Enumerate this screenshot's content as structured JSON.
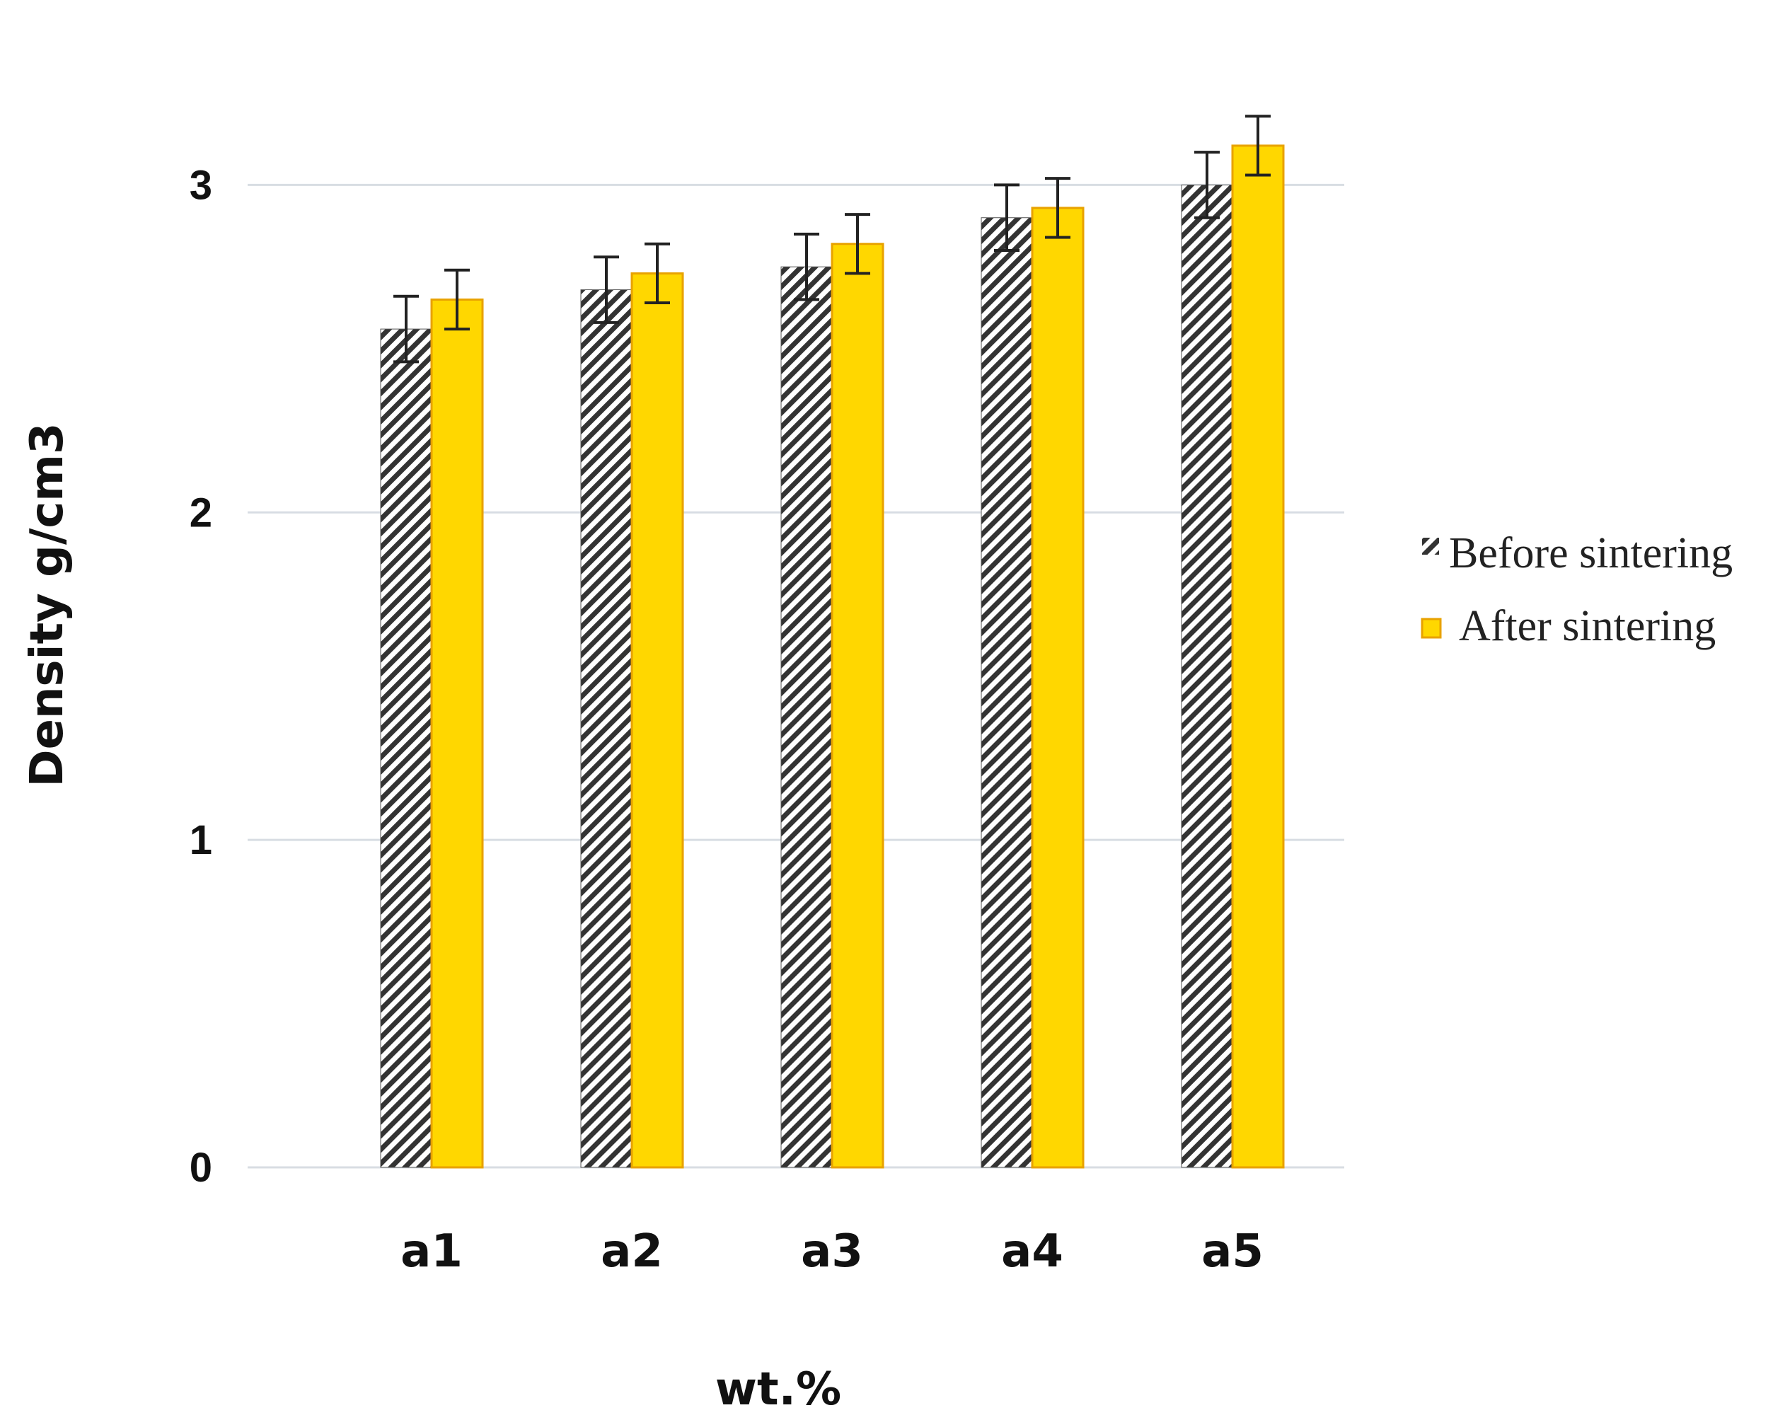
{
  "chart_data": {
    "type": "bar",
    "categories": [
      "a1",
      "a2",
      "a3",
      "a4",
      "a5"
    ],
    "series": [
      {
        "name": "Before sintering",
        "values": [
          2.56,
          2.68,
          2.75,
          2.9,
          3.0
        ],
        "errors": [
          0.1,
          0.1,
          0.1,
          0.1,
          0.1
        ],
        "color": "#333333",
        "pattern": "diagonal-hatch"
      },
      {
        "name": "After sintering",
        "values": [
          2.65,
          2.73,
          2.82,
          2.93,
          3.12
        ],
        "errors": [
          0.09,
          0.09,
          0.09,
          0.09,
          0.09
        ],
        "color": "#FFD700",
        "pattern": "solid"
      }
    ],
    "xlabel": "wt.%",
    "ylabel": "Density g/cm3",
    "ylim": [
      0,
      3.5
    ],
    "yticks": [
      0,
      1,
      2,
      3
    ],
    "grid": true,
    "legend_position": "right",
    "colors": {
      "gridline": "#2a6fd6",
      "after_fill": "#FFD700",
      "after_edge": "#E8A200",
      "hatch": "#333333"
    }
  }
}
